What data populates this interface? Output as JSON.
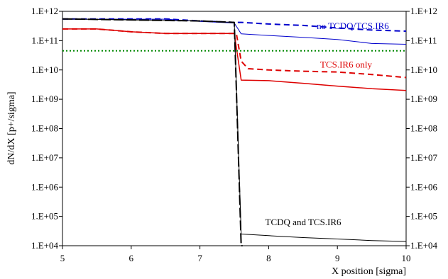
{
  "chart_data": {
    "type": "line",
    "title": "",
    "xlabel": "X position [sigma]",
    "ylabel": "dN/dX  [p+/sigma]",
    "xlim": [
      5,
      10
    ],
    "ylim": [
      10000,
      1000000000000
    ],
    "yscale": "log",
    "grid": false,
    "x_ticks": [
      "5",
      "6",
      "7",
      "8",
      "9",
      "10"
    ],
    "y_ticks": [
      "1.E+12",
      "1.E+11",
      "1.E+10",
      "1.E+09",
      "1.E+08",
      "1.E+07",
      "1.E+06",
      "1.E+05",
      "1.E+04"
    ],
    "annotations": [
      {
        "text": "no TCDQ/TCS.IR6",
        "color": "#0000cc",
        "at_x": 8.7,
        "at_y": 250000000000
      },
      {
        "text": "TCS.IR6 only",
        "color": "#dd0000",
        "at_x": 8.75,
        "at_y": 12000000000
      },
      {
        "text": "TCDQ and TCS.IR6",
        "color": "#000000",
        "at_x": 7.95,
        "at_y": 50000
      }
    ],
    "series": [
      {
        "color": "#0000cc",
        "dash": "8,5",
        "width": 2,
        "x": [
          5,
          5.5,
          6,
          6.5,
          7,
          7.5,
          7.6,
          8,
          8.5,
          9,
          9.5,
          10
        ],
        "y": [
          550000000000,
          550000000000,
          550000000000,
          550000000000,
          470000000000,
          420000000000,
          420000000000,
          370000000000,
          330000000000,
          270000000000,
          230000000000,
          210000000000
        ]
      },
      {
        "color": "#0000cc",
        "dash": "",
        "width": 1,
        "x": [
          5,
          5.5,
          6,
          6.5,
          7,
          7.5,
          7.6,
          8,
          8.5,
          9,
          9.5,
          10
        ],
        "y": [
          540000000000,
          540000000000,
          540000000000,
          540000000000,
          450000000000,
          400000000000,
          170000000000,
          150000000000,
          130000000000,
          110000000000,
          80000000000,
          75000000000
        ]
      },
      {
        "color": "#dd0000",
        "dash": "8,5",
        "width": 2,
        "x": [
          5,
          5.5,
          6,
          6.5,
          7,
          7.53,
          7.6,
          7.7,
          8,
          8.5,
          9,
          9.5,
          10
        ],
        "y": [
          250000000000,
          250000000000,
          200000000000,
          175000000000,
          175000000000,
          175000000000,
          20000000000,
          11000000000,
          10000000000,
          9000000000,
          8500000000,
          7000000000,
          5500000000
        ]
      },
      {
        "color": "#dd0000",
        "dash": "",
        "width": 1.5,
        "x": [
          5,
          5.5,
          6,
          6.5,
          7,
          7.5,
          7.6,
          8,
          8.5,
          9,
          9.5,
          10
        ],
        "y": [
          250000000000,
          250000000000,
          200000000000,
          175000000000,
          175000000000,
          175000000000,
          4500000000,
          4300000000,
          3500000000,
          2800000000,
          2300000000,
          2000000000
        ]
      },
      {
        "color": "#000000",
        "dash": "14,4",
        "width": 2,
        "x": [
          5,
          7,
          7.5,
          7.6,
          7.62
        ],
        "y": [
          550000000000,
          470000000000,
          420000000000,
          10000,
          10000
        ]
      },
      {
        "color": "#000000",
        "dash": "",
        "width": 1,
        "x": [
          5,
          7,
          7.5,
          7.6,
          8,
          8.5,
          9,
          9.5,
          10
        ],
        "y": [
          550000000000,
          470000000000,
          420000000000,
          25000,
          22000,
          19000,
          17000,
          15000,
          14000
        ]
      },
      {
        "color": "#008800",
        "dash": "2,3",
        "width": 2,
        "x": [
          5,
          10
        ],
        "y": [
          45000000000,
          45000000000
        ]
      }
    ]
  }
}
